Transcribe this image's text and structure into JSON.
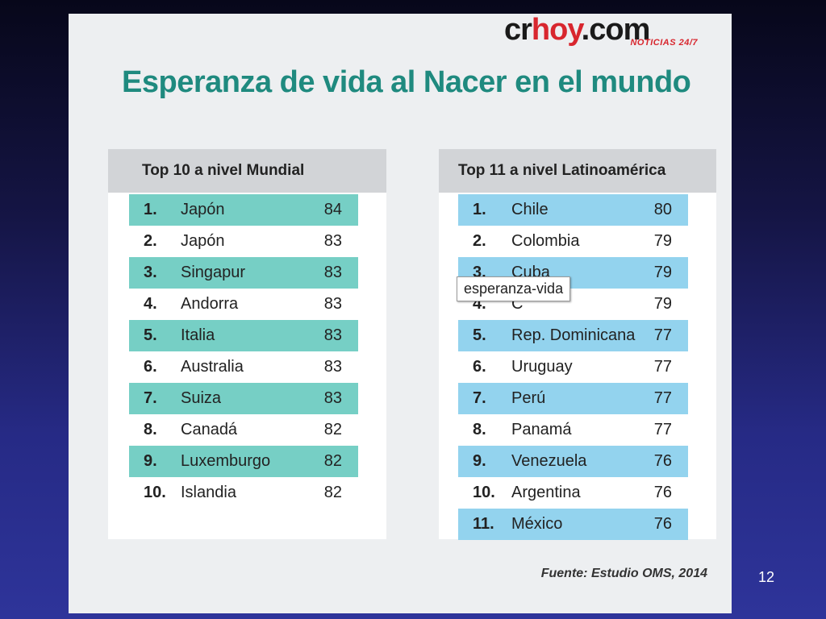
{
  "logo": {
    "prefix": "cr",
    "highlight": "hoy",
    "suffix": ".com",
    "tagline": "NOTICIAS 24/7"
  },
  "title": "Esperanza de vida al Nacer en el mundo",
  "world": {
    "header": "Top 10 a nivel Mundial",
    "rows": [
      {
        "rank": "1.",
        "country": "Japón",
        "value": "84"
      },
      {
        "rank": "2.",
        "country": "Japón",
        "value": "83"
      },
      {
        "rank": "3.",
        "country": "Singapur",
        "value": "83"
      },
      {
        "rank": "4.",
        "country": "Andorra",
        "value": "83"
      },
      {
        "rank": "5.",
        "country": "Italia",
        "value": "83"
      },
      {
        "rank": "6.",
        "country": "Australia",
        "value": "83"
      },
      {
        "rank": "7.",
        "country": "Suiza",
        "value": "83"
      },
      {
        "rank": "8.",
        "country": "Canadá",
        "value": "82"
      },
      {
        "rank": "9.",
        "country": "Luxemburgo",
        "value": "82"
      },
      {
        "rank": "10.",
        "country": "Islandia",
        "value": "82"
      }
    ]
  },
  "latam": {
    "header": "Top 11 a nivel Latinoamérica",
    "rows": [
      {
        "rank": "1.",
        "country": "Chile",
        "value": "80"
      },
      {
        "rank": "2.",
        "country": "Colombia",
        "value": "79"
      },
      {
        "rank": "3.",
        "country": "Cuba",
        "value": "79"
      },
      {
        "rank": "4.",
        "country": "C",
        "value": "79"
      },
      {
        "rank": "5.",
        "country": "Rep. Dominicana",
        "value": "77"
      },
      {
        "rank": "6.",
        "country": "Uruguay",
        "value": "77"
      },
      {
        "rank": "7.",
        "country": "Perú",
        "value": "77"
      },
      {
        "rank": "8.",
        "country": "Panamá",
        "value": "77"
      },
      {
        "rank": "9.",
        "country": "Venezuela",
        "value": "76"
      },
      {
        "rank": "10.",
        "country": "Argentina",
        "value": "76"
      },
      {
        "rank": "11.",
        "country": "México",
        "value": "76"
      }
    ]
  },
  "tooltip": "esperanza-vida",
  "source": "Fuente: Estudio OMS, 2014",
  "page_number": "12",
  "colors": {
    "title": "#1f8a7f",
    "world_row_fill": "#76cfc5",
    "latam_row_fill": "#93d3ee",
    "header_fill": "#d2d4d7",
    "logo_red": "#d8262e"
  }
}
